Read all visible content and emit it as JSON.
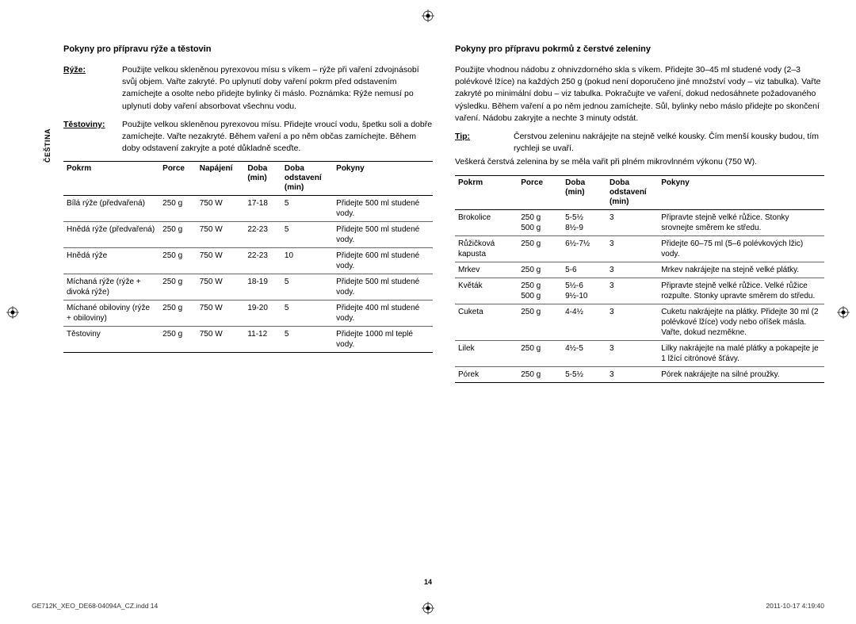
{
  "sideLabel": "ČEŠTINA",
  "pageNumber": "14",
  "footer": {
    "left": "GE712K_XEO_DE68-04094A_CZ.indd   14",
    "right": "2011-10-17   4:19:40"
  },
  "left": {
    "title": "Pokyny pro přípravu rýže a těstovin",
    "blocks": [
      {
        "label": "Rýže:",
        "text": "Použijte velkou skleněnou pyrexovou mísu s víkem – rýže při vaření zdvojnásobí svůj objem. Vařte zakryté. Po uplynutí doby vaření pokrm před odstavením zamíchejte a osolte nebo přidejte bylinky či máslo. Poznámka: Rýže nemusí po uplynutí doby vaření absorbovat všechnu vodu."
      },
      {
        "label": "Těstoviny:",
        "text": "Použijte velkou skleněnou pyrexovou mísu. Přidejte vroucí vodu, špetku soli a dobře zamíchejte. Vařte nezakryté. Během vaření a po něm občas zamíchejte. Během doby odstavení zakryjte a poté důkladně sceďte."
      }
    ],
    "table": {
      "headers": [
        "Pokrm",
        "Porce",
        "Napájení",
        "Doba (min)",
        "Doba odstavení (min)",
        "Pokyny"
      ],
      "rows": [
        [
          "Bílá rýže (předvařená)",
          "250 g",
          "750 W",
          "17-18",
          "5",
          "Přidejte 500 ml studené vody."
        ],
        [
          "Hnědá rýže (předvařená)",
          "250 g",
          "750 W",
          "22-23",
          "5",
          "Přidejte 500 ml studené vody."
        ],
        [
          "Hnědá rýže",
          "250 g",
          "750 W",
          "22-23",
          "10",
          "Přidejte 600 ml studené vody."
        ],
        [
          "Míchaná rýže (rýže + divoká rýže)",
          "250 g",
          "750 W",
          "18-19",
          "5",
          "Přidejte 500 ml studené vody."
        ],
        [
          "Míchané obiloviny (rýže + obiloviny)",
          "250 g",
          "750 W",
          "19-20",
          "5",
          "Přidejte 400 ml studené vody."
        ],
        [
          "Těstoviny",
          "250 g",
          "750 W",
          "11-12",
          "5",
          "Přidejte 1000 ml teplé vody."
        ]
      ]
    }
  },
  "right": {
    "title": "Pokyny pro přípravu pokrmů z čerstvé zeleniny",
    "intro": "Použijte vhodnou nádobu z ohnivzdorného skla s víkem. Přidejte 30–45 ml studené vody (2–3 polévkové lžíce) na každých 250 g (pokud není doporučeno jiné množství vody – viz tabulka). Vařte zakryté po minimální dobu – viz tabulka. Pokračujte ve vaření, dokud nedosáhnete požadovaného výsledku. Během vaření a po něm jednou zamíchejte. Sůl, bylinky nebo máslo přidejte po skončení vaření. Nádobu zakryjte a nechte 3 minuty odstát.",
    "tip": {
      "label": "Tip:",
      "text": "Čerstvou zeleninu nakrájejte na stejně velké kousky. Čím menší kousky budou, tím rychleji se uvaří."
    },
    "outro": "Veškerá čerstvá zelenina by se měla vařit při plném mikrovlnném výkonu (750 W).",
    "table": {
      "headers": [
        "Pokrm",
        "Porce",
        "Doba (min)",
        "Doba odstavení (min)",
        "Pokyny"
      ],
      "rows": [
        [
          "Brokolice",
          "250 g\n500 g",
          "5-5½\n8½-9",
          "3",
          "Připravte stejně velké růžice. Stonky srovnejte směrem ke středu."
        ],
        [
          "Růžičková kapusta",
          "250 g",
          "6½-7½",
          "3",
          "Přidejte 60–75 ml (5–6 polévkových lžic) vody."
        ],
        [
          "Mrkev",
          "250 g",
          "5-6",
          "3",
          "Mrkev nakrájejte na stejně velké plátky."
        ],
        [
          "Květák",
          "250 g\n500 g",
          "5½-6\n9½-10",
          "3",
          "Připravte stejně velké růžice. Velké růžice rozpulte. Stonky upravte směrem do středu."
        ],
        [
          "Cuketa",
          "250 g",
          "4-4½",
          "3",
          "Cuketu nakrájejte na plátky. Přidejte 30 ml (2 polévkové lžíce) vody nebo oříšek másla. Vařte, dokud nezměkne."
        ],
        [
          "Lilek",
          "250 g",
          "4½-5",
          "3",
          "Lilky nakrájejte na malé plátky a pokapejte je 1 lžící citrónové šťávy."
        ],
        [
          "Pórek",
          "250 g",
          "5-5½",
          "3",
          "Pórek nakrájejte na silné proužky."
        ]
      ]
    }
  }
}
